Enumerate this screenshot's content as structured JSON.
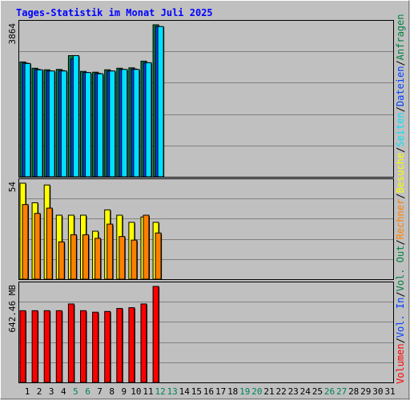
{
  "title": "Tages-Statistik im Monat Juli 2025",
  "colors": {
    "background": "#C0C0C0",
    "title": "#0000FF",
    "hits": "#008040",
    "files": "#0040FF",
    "pages": "#00E0FF",
    "visits": "#FFFF00",
    "sites": "#FF8000",
    "volume": "#FF0000",
    "weekend_label": "#00805C",
    "text": "#000000"
  },
  "right_legends": {
    "top": [
      {
        "text": "Anfragen",
        "color_key": "hits"
      },
      {
        "text": "/",
        "color_key": "text"
      },
      {
        "text": "Dateien",
        "color_key": "files"
      },
      {
        "text": "/",
        "color_key": "text"
      },
      {
        "text": "Seiten",
        "color_key": "pages"
      },
      {
        "text": "/",
        "color_key": "text"
      },
      {
        "text": "Besuche",
        "color_key": "visits"
      },
      {
        "text": "/",
        "color_key": "text"
      },
      {
        "text": "Rechner",
        "color_key": "sites"
      },
      {
        "text": "/",
        "color_key": "text"
      },
      {
        "text": "Vol. Out",
        "color_key": "hits"
      },
      {
        "text": "/",
        "color_key": "text"
      },
      {
        "text": "Vol. In",
        "color_key": "files"
      },
      {
        "text": "/",
        "color_key": "text"
      },
      {
        "text": "Volumen",
        "color_key": "volume"
      }
    ]
  },
  "chart_data": {
    "type": "bar",
    "title": "Tages-Statistik im Monat Juli 2025",
    "categories": [
      "1",
      "2",
      "3",
      "4",
      "5",
      "6",
      "7",
      "8",
      "9",
      "10",
      "11",
      "12",
      "13",
      "14",
      "15",
      "16",
      "17",
      "18",
      "19",
      "20",
      "21",
      "22",
      "23",
      "24",
      "25",
      "26",
      "27",
      "28",
      "29",
      "30",
      "31"
    ],
    "weekend_days": [
      "5",
      "6",
      "12",
      "13",
      "19",
      "20",
      "26",
      "27"
    ],
    "panels": [
      {
        "id": "requests",
        "ymax_label": "3864",
        "ylim": [
          0,
          3864
        ],
        "series": [
          {
            "name": "Anfragen",
            "color_key": "hits",
            "values": [
              2920,
              2760,
              2720,
              2730,
              3080,
              2680,
              2660,
              2720,
              2760,
              2770,
              2940,
              3864
            ]
          },
          {
            "name": "Dateien",
            "color_key": "files",
            "values": [
              2890,
              2730,
              2690,
              2700,
              3000,
              2650,
              2630,
              2690,
              2730,
              2740,
              2900,
              3820
            ]
          },
          {
            "name": "Seiten",
            "color_key": "pages",
            "values": [
              2880,
              2720,
              2690,
              2690,
              3080,
              2650,
              2620,
              2690,
              2730,
              2730,
              2900,
              3820
            ]
          }
        ]
      },
      {
        "id": "visits",
        "ymax_label": "54",
        "ylim": [
          0,
          54
        ],
        "series": [
          {
            "name": "Besuche",
            "color_key": "visits",
            "values": [
              54,
              43,
              53,
              36,
              36,
              36,
              27,
              39,
              36,
              32,
              35,
              32
            ]
          },
          {
            "name": "Rechner",
            "color_key": "sites",
            "values": [
              42,
              37,
              40,
              21,
              25,
              25,
              23,
              31,
              24,
              22,
              36,
              26
            ]
          }
        ]
      },
      {
        "id": "volume",
        "ymax_label": "642.46 MB",
        "ylim": [
          0,
          642.46
        ],
        "series": [
          {
            "name": "Volumen",
            "color_key": "volume",
            "values": [
              480,
              480,
              480,
              480,
              525,
              480,
              470,
              475,
              495,
              500,
              525,
              642.46
            ]
          }
        ]
      }
    ]
  }
}
